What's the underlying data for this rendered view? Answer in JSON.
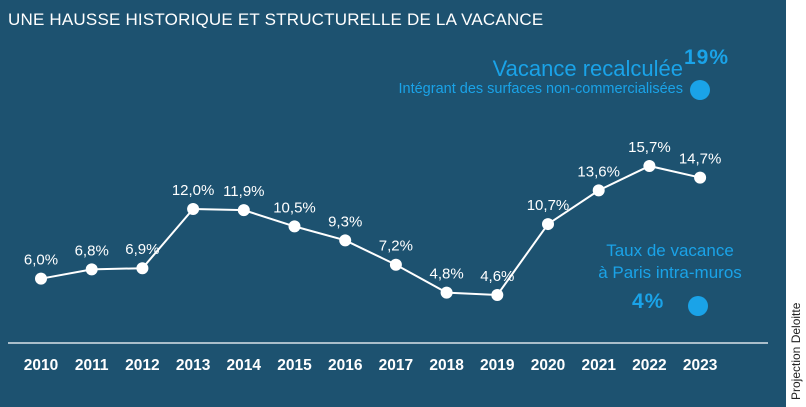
{
  "title": "UNE HAUSSE HISTORIQUE ET STRUCTURELLE DE LA VACANCE",
  "annotations": {
    "recalc_label": "Vacance recalculée",
    "recalc_sub": "Intégrant des surfaces non-commercialisées",
    "recalc_value": "19%",
    "paris_label_1": "Taux de vacance",
    "paris_label_2": "à Paris intra-muros",
    "paris_value": "4%"
  },
  "source": "Projection Deloitte",
  "colors": {
    "background": "#1d5270",
    "accent": "#1aa3e8",
    "line": "#ffffff"
  },
  "chart_data": {
    "type": "line",
    "title": "UNE HAUSSE HISTORIQUE ET STRUCTURELLE DE LA VACANCE",
    "categories": [
      "2010",
      "2011",
      "2012",
      "2013",
      "2014",
      "2015",
      "2016",
      "2017",
      "2018",
      "2019",
      "2020",
      "2021",
      "2022",
      "2023"
    ],
    "values": [
      6.0,
      6.8,
      6.9,
      12.0,
      11.9,
      10.5,
      9.3,
      7.2,
      4.8,
      4.6,
      10.7,
      13.6,
      15.7,
      14.7
    ],
    "data_labels": [
      "6,0%",
      "6,8%",
      "6,9%",
      "12,0%",
      "11,9%",
      "10,5%",
      "9,3%",
      "7,2%",
      "4,8%",
      "4,6%",
      "10,7%",
      "13,6%",
      "15,7%",
      "14,7%"
    ],
    "xlabel": "",
    "ylabel": "",
    "grid": false,
    "legend": "none"
  }
}
